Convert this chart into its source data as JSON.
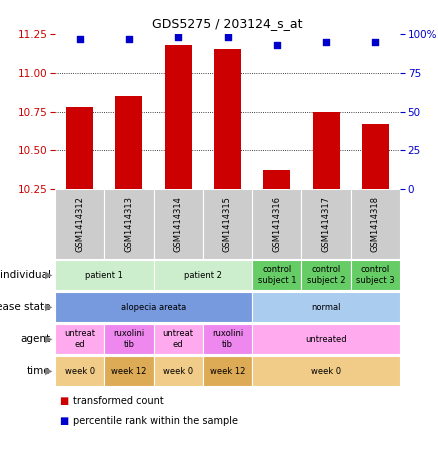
{
  "title": "GDS5275 / 203124_s_at",
  "samples": [
    "GSM1414312",
    "GSM1414313",
    "GSM1414314",
    "GSM1414315",
    "GSM1414316",
    "GSM1414317",
    "GSM1414318"
  ],
  "bar_values": [
    10.78,
    10.85,
    11.18,
    11.15,
    10.37,
    10.75,
    10.67
  ],
  "dot_values": [
    97,
    97,
    98,
    98,
    93,
    95,
    95
  ],
  "ylim_left": [
    10.25,
    11.25
  ],
  "ylim_right": [
    0,
    100
  ],
  "yticks_left": [
    10.25,
    10.5,
    10.75,
    11.0,
    11.25
  ],
  "yticks_right": [
    0,
    25,
    50,
    75,
    100
  ],
  "bar_color": "#cc0000",
  "dot_color": "#0000cc",
  "label_rows": [
    {
      "label": "individual",
      "groups": [
        {
          "text": "patient 1",
          "span": [
            0,
            2
          ],
          "color": "#cceecc"
        },
        {
          "text": "patient 2",
          "span": [
            2,
            4
          ],
          "color": "#cceecc"
        },
        {
          "text": "control\nsubject 1",
          "span": [
            4,
            5
          ],
          "color": "#66cc66"
        },
        {
          "text": "control\nsubject 2",
          "span": [
            5,
            6
          ],
          "color": "#66cc66"
        },
        {
          "text": "control\nsubject 3",
          "span": [
            6,
            7
          ],
          "color": "#66cc66"
        }
      ]
    },
    {
      "label": "disease state",
      "groups": [
        {
          "text": "alopecia areata",
          "span": [
            0,
            4
          ],
          "color": "#7799dd"
        },
        {
          "text": "normal",
          "span": [
            4,
            7
          ],
          "color": "#aaccee"
        }
      ]
    },
    {
      "label": "agent",
      "groups": [
        {
          "text": "untreat\ned",
          "span": [
            0,
            1
          ],
          "color": "#ffaaee"
        },
        {
          "text": "ruxolini\ntib",
          "span": [
            1,
            2
          ],
          "color": "#ee88ee"
        },
        {
          "text": "untreat\ned",
          "span": [
            2,
            3
          ],
          "color": "#ffaaee"
        },
        {
          "text": "ruxolini\ntib",
          "span": [
            3,
            4
          ],
          "color": "#ee88ee"
        },
        {
          "text": "untreated",
          "span": [
            4,
            7
          ],
          "color": "#ffaaee"
        }
      ]
    },
    {
      "label": "time",
      "groups": [
        {
          "text": "week 0",
          "span": [
            0,
            1
          ],
          "color": "#f0cc88"
        },
        {
          "text": "week 12",
          "span": [
            1,
            2
          ],
          "color": "#ddaa55"
        },
        {
          "text": "week 0",
          "span": [
            2,
            3
          ],
          "color": "#f0cc88"
        },
        {
          "text": "week 12",
          "span": [
            3,
            4
          ],
          "color": "#ddaa55"
        },
        {
          "text": "week 0",
          "span": [
            4,
            7
          ],
          "color": "#f0cc88"
        }
      ]
    }
  ],
  "legend_items": [
    {
      "label": "transformed count",
      "color": "#cc0000"
    },
    {
      "label": "percentile rank within the sample",
      "color": "#0000cc"
    }
  ]
}
